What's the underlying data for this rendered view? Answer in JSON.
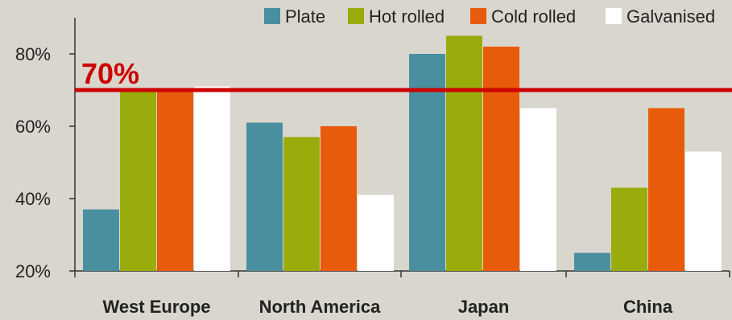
{
  "chart_data": {
    "type": "bar",
    "categories": [
      "West Europe",
      "North America",
      "Japan",
      "China"
    ],
    "series": [
      {
        "name": "Plate",
        "color": "#4a8fa0",
        "values": [
          37,
          61,
          80,
          25
        ]
      },
      {
        "name": "Hot rolled",
        "color": "#9aab0c",
        "values": [
          70,
          57,
          85,
          43
        ]
      },
      {
        "name": "Cold rolled",
        "color": "#e85b0a",
        "values": [
          70,
          60,
          82,
          65
        ]
      },
      {
        "name": "Galvanised",
        "color": "#ffffff",
        "values": [
          71,
          41,
          65,
          53
        ]
      }
    ],
    "y_ticks": [
      "20%",
      "40%",
      "60%",
      "80%"
    ],
    "y_tick_values": [
      20,
      40,
      60,
      80
    ],
    "ylim": [
      20,
      90
    ],
    "reference_line": {
      "value": 70,
      "label": "70%",
      "color": "#cc0000"
    },
    "legend_position": "top-right",
    "grid": false
  }
}
